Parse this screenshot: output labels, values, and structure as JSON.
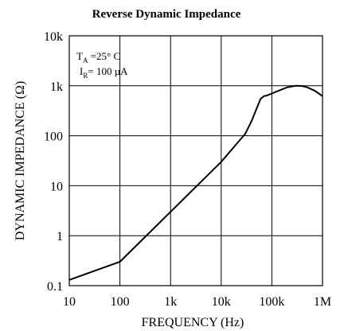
{
  "chart_data": {
    "type": "line",
    "title": "Reverse Dynamic Impedance",
    "xlabel": "FREQUENCY (Hz)",
    "ylabel": "DYNAMIC IMPEDANCE (Ω)",
    "xscale": "log",
    "yscale": "log",
    "xlim": [
      10,
      1000000
    ],
    "ylim": [
      0.1,
      10000
    ],
    "grid": true,
    "x_ticks": [
      10,
      100,
      1000,
      10000,
      100000,
      1000000
    ],
    "x_tick_labels": [
      "10",
      "100",
      "1k",
      "10k",
      "100k",
      "1M"
    ],
    "y_ticks": [
      0.1,
      1,
      10,
      100,
      1000,
      10000
    ],
    "y_tick_labels": [
      "0.1",
      "1",
      "10",
      "100",
      "1k",
      "10k"
    ],
    "annotation": {
      "ta_main": "T",
      "ta_sub": "A",
      "ta_rest": " =25° C",
      "ir_main": "I",
      "ir_sub": "R",
      "ir_rest": "= 100 µA"
    },
    "series": [
      {
        "x": [
          10,
          100,
          1000,
          10000,
          30000,
          40000,
          50000,
          60000,
          70000,
          80000,
          100000,
          150000,
          200000,
          300000,
          400000,
          500000,
          700000,
          1000000
        ],
        "y": [
          0.13,
          0.3,
          3,
          30,
          110,
          200,
          350,
          550,
          620,
          640,
          700,
          830,
          930,
          1000,
          990,
          930,
          800,
          620
        ]
      }
    ]
  }
}
